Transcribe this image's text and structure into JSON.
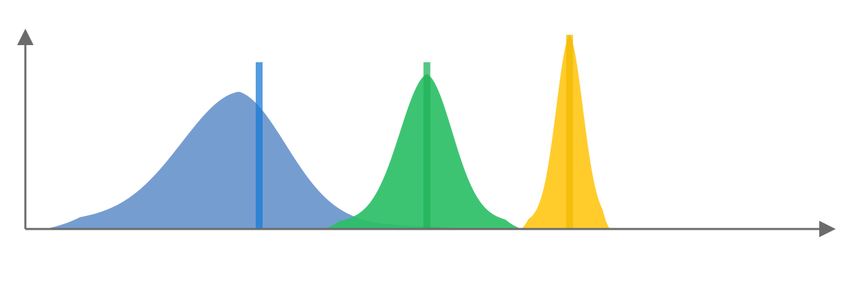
{
  "chart_data": {
    "type": "area",
    "title": "",
    "xlabel": "",
    "ylabel": "",
    "xlim": [
      0,
      100
    ],
    "ylim": [
      0,
      100
    ],
    "grid": false,
    "legend": "none",
    "axis_color": "#6b6b6b",
    "series": [
      {
        "peak_x": 26.5,
        "peak_y": 70,
        "width_left": 7.2,
        "width_right": 6.0,
        "tail_left": 20.0,
        "tail_right": 10.0,
        "range": [
          2.5,
          56.0
        ],
        "fill": "#6a95cc",
        "marker_x": 29.0,
        "marker_height": 85,
        "marker_color": "#1a7bd6"
      },
      {
        "peak_x": 49.8,
        "peak_y": 79,
        "width_left": 3.4,
        "width_right": 3.2,
        "tail_left": 8.0,
        "tail_right": 8.0,
        "range": [
          37.0,
          61.5
        ],
        "fill": "#2dbf66",
        "marker_x": 49.8,
        "marker_height": 85,
        "marker_color": "#1fb35a"
      },
      {
        "peak_x": 67.5,
        "peak_y": 99,
        "width_left": 1.7,
        "width_right": 1.7,
        "tail_left": 3.5,
        "tail_right": 3.5,
        "range": [
          61.5,
          72.5
        ],
        "fill": "#ffc81a",
        "marker_x": 67.5,
        "marker_height": 99,
        "marker_color": "#f0ba00"
      }
    ]
  }
}
